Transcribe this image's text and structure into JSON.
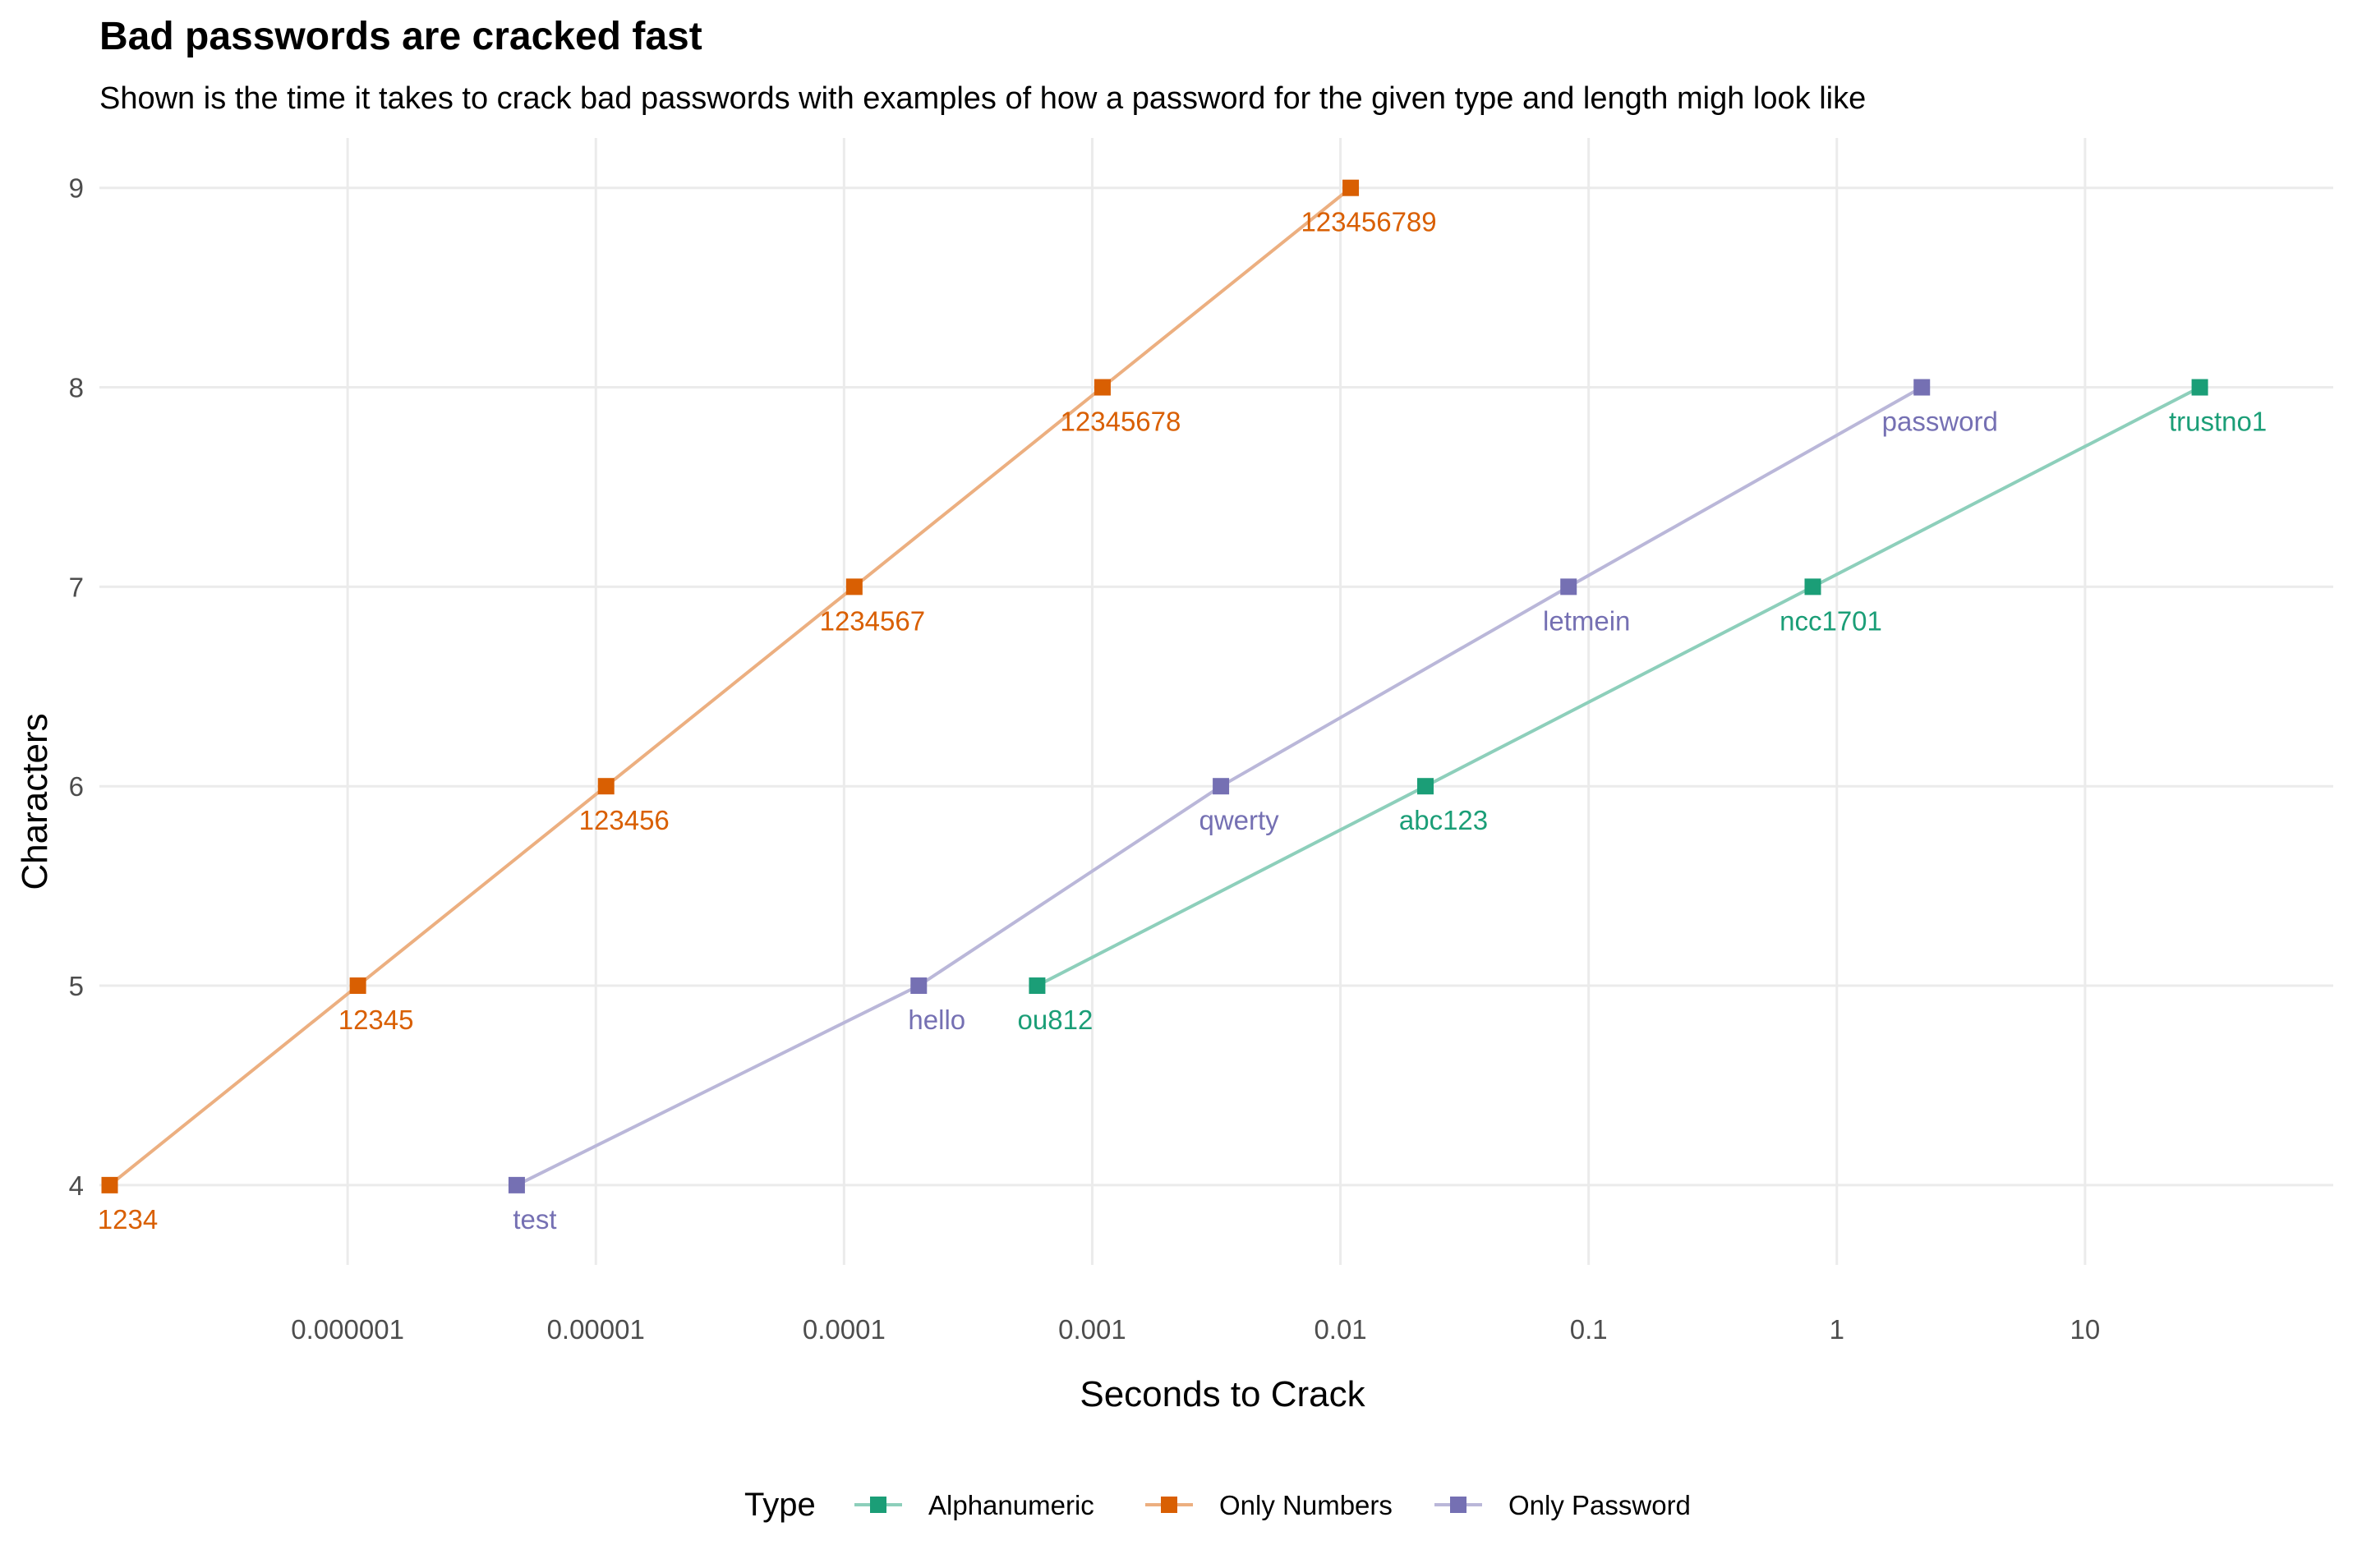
{
  "chart_data": {
    "type": "line",
    "title": "Bad passwords are cracked fast",
    "subtitle": "Shown is the time it takes to crack bad passwords with examples of how a password for the given type and length migh look like",
    "xlabel": "Seconds to Crack",
    "ylabel": "Characters",
    "x_scale": "log10",
    "xlim": [
      1e-07,
      100
    ],
    "ylim": [
      3.6,
      9.25
    ],
    "x_ticks": [
      {
        "value": 1e-06,
        "label": "0.000001"
      },
      {
        "value": 1e-05,
        "label": "0.00001"
      },
      {
        "value": 0.0001,
        "label": "0.0001"
      },
      {
        "value": 0.001,
        "label": "0.001"
      },
      {
        "value": 0.01,
        "label": "0.01"
      },
      {
        "value": 0.1,
        "label": "0.1"
      },
      {
        "value": 1,
        "label": "1"
      },
      {
        "value": 10,
        "label": "10"
      }
    ],
    "y_ticks": [
      {
        "value": 4,
        "label": "4"
      },
      {
        "value": 5,
        "label": "5"
      },
      {
        "value": 6,
        "label": "6"
      },
      {
        "value": 7,
        "label": "7"
      },
      {
        "value": 8,
        "label": "8"
      },
      {
        "value": 9,
        "label": "9"
      }
    ],
    "grid": true,
    "legend": {
      "title": "Type",
      "position": "bottom"
    },
    "series": [
      {
        "name": "Alphanumeric",
        "color": "#1b9e77",
        "line_color": "#8dcfbb",
        "points": [
          {
            "x": 0.0006,
            "y": 5,
            "label": "ou812"
          },
          {
            "x": 0.022,
            "y": 6,
            "label": "abc123"
          },
          {
            "x": 0.8,
            "y": 7,
            "label": "ncc1701"
          },
          {
            "x": 29,
            "y": 8,
            "label": "trustno1"
          }
        ]
      },
      {
        "name": "Only Numbers",
        "color": "#d95f02",
        "line_color": "#ecaf80",
        "points": [
          {
            "x": 1.1e-07,
            "y": 4,
            "label": "1234"
          },
          {
            "x": 1.1e-06,
            "y": 5,
            "label": "12345"
          },
          {
            "x": 1.1e-05,
            "y": 6,
            "label": "123456"
          },
          {
            "x": 0.00011,
            "y": 7,
            "label": "1234567"
          },
          {
            "x": 0.0011,
            "y": 8,
            "label": "12345678"
          },
          {
            "x": 0.011,
            "y": 9,
            "label": "123456789"
          }
        ]
      },
      {
        "name": "Only Password",
        "color": "#7570b3",
        "line_color": "#bab7d9",
        "points": [
          {
            "x": 4.8e-06,
            "y": 4,
            "label": "test"
          },
          {
            "x": 0.0002,
            "y": 5,
            "label": "hello"
          },
          {
            "x": 0.0033,
            "y": 6,
            "label": "qwerty"
          },
          {
            "x": 0.083,
            "y": 7,
            "label": "letmein"
          },
          {
            "x": 2.2,
            "y": 8,
            "label": "password"
          }
        ]
      }
    ]
  }
}
